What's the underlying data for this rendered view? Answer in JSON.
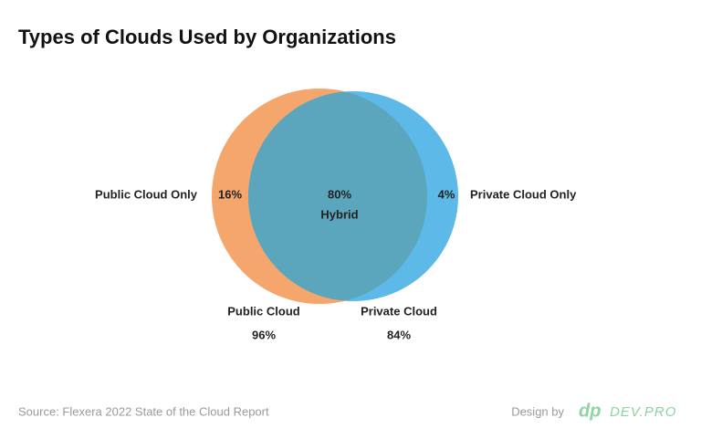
{
  "chart_data": {
    "type": "venn",
    "title": "Types of Clouds Used by Organizations",
    "sets": [
      {
        "name": "Public Cloud",
        "value": 96,
        "value_label": "96%",
        "color": "#f4a66c"
      },
      {
        "name": "Private Cloud",
        "value": 84,
        "value_label": "84%",
        "color": "#5cb9e8"
      }
    ],
    "regions": [
      {
        "name": "Public Cloud Only",
        "value": 16,
        "value_label": "16%"
      },
      {
        "name": "Hybrid",
        "value": 80,
        "value_label": "80%",
        "color": "#5ba6bd"
      },
      {
        "name": "Private Cloud Only",
        "value": 4,
        "value_label": "4%"
      }
    ],
    "source": "Source: Flexera 2022 State of the Cloud Report",
    "credit": "Design by",
    "logo": "dp",
    "brand": "DEV.PRO"
  }
}
